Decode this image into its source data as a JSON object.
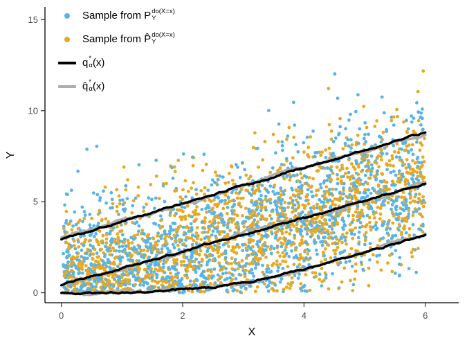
{
  "chart_data": {
    "type": "scatter",
    "title": "",
    "xlabel": "X",
    "ylabel": "Y",
    "xlim": [
      -0.27,
      6.55
    ],
    "ylim": [
      -0.55,
      15.7
    ],
    "x_ticks": [
      0,
      2,
      4,
      6
    ],
    "y_ticks": [
      0,
      5,
      10,
      15
    ],
    "background": "#ffffff",
    "axis_color": "#000000",
    "tick_label_color": "#4d4d4d",
    "series": [
      {
        "name": "Sample from P_Y^do(X=x)",
        "color": "#56B4E9",
        "n": 1600,
        "seed": 7
      },
      {
        "name": "Sample from P̂_Y^do(X=x)",
        "color": "#E8A820",
        "n": 1600,
        "seed": 99
      }
    ],
    "scatter_model": {
      "x_min": 0.03,
      "x_max": 6.0,
      "mid_intercept": 0.4,
      "mid_slope": 0.933,
      "sigma": 2.1,
      "fold_at_zero": true
    },
    "lines": {
      "x": [
        0,
        0.5,
        1,
        1.5,
        2,
        2.5,
        3,
        3.5,
        4,
        4.5,
        5,
        5.5,
        6
      ],
      "black": {
        "name": "q*_α(x)",
        "color": "#000000",
        "upper": [
          2.95,
          3.44,
          3.93,
          4.41,
          4.9,
          5.39,
          5.88,
          6.36,
          6.85,
          7.34,
          7.83,
          8.31,
          8.8
        ],
        "mid": [
          0.4,
          0.87,
          1.33,
          1.8,
          2.27,
          2.73,
          3.2,
          3.67,
          4.13,
          4.6,
          5.07,
          5.53,
          6.0
        ],
        "lower": [
          0,
          0,
          0.02,
          0.06,
          0.15,
          0.3,
          0.55,
          0.9,
          1.3,
          1.75,
          2.2,
          2.7,
          3.2
        ]
      },
      "gray": {
        "name": "q̂*_α(x)",
        "color": "#ADADAD"
      }
    },
    "legend": {
      "items": [
        {
          "marker": "point",
          "color": "#56B4E9",
          "label_plain": "Sample from P_Y^do(X=x)",
          "parts": [
            {
              "t": "Sample from P"
            },
            {
              "stack": {
                "top": "do(X=x)",
                "bottom": "Y"
              }
            }
          ]
        },
        {
          "marker": "point",
          "color": "#E8A820",
          "label_plain": "Sample from P̂_Y^do(X=x)",
          "parts": [
            {
              "t": "Sample from P̂"
            },
            {
              "stack": {
                "top": "do(X=x)",
                "bottom": "Y"
              }
            }
          ]
        },
        {
          "marker": "line",
          "color": "#000000",
          "label_plain": "q*_α(x)",
          "parts": [
            {
              "t": "q"
            },
            {
              "stack": {
                "top": "*",
                "bottom": "α"
              }
            },
            {
              "t": "(x)"
            }
          ]
        },
        {
          "marker": "line",
          "color": "#ADADAD",
          "label_plain": "q̂*_α(x)",
          "parts": [
            {
              "t": "q̂"
            },
            {
              "stack": {
                "top": "*",
                "bottom": "α"
              }
            },
            {
              "t": "(x)"
            }
          ]
        }
      ]
    }
  }
}
